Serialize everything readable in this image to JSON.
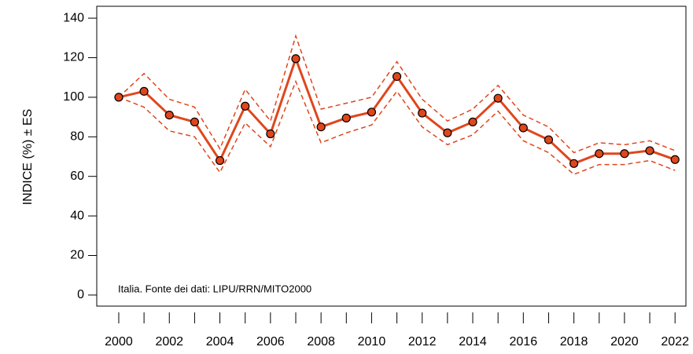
{
  "chart_data": {
    "type": "line",
    "ylabel": "INDICE (%) ± ES",
    "annotation": "Italia. Fonte dei dati: LIPU/RRN/MITO2000",
    "x": [
      2000,
      2001,
      2002,
      2003,
      2004,
      2005,
      2006,
      2007,
      2008,
      2009,
      2010,
      2011,
      2012,
      2013,
      2014,
      2015,
      2016,
      2017,
      2018,
      2019,
      2020,
      2021,
      2022
    ],
    "series": [
      {
        "color": "#e0461c",
        "line_style": "solid",
        "markers": true,
        "values": [
          100,
          103,
          91,
          87.5,
          68,
          95.5,
          81.5,
          119.5,
          85,
          89.5,
          92.5,
          110.5,
          92,
          82,
          87.5,
          99.5,
          84.5,
          78.5,
          66.5,
          71.5,
          71.5,
          73,
          68.5
        ]
      },
      {
        "color": "#e0461c",
        "line_style": "dashed",
        "markers": false,
        "values": [
          100,
          112,
          99,
          95,
          74,
          104,
          88,
          131,
          94,
          97,
          100,
          118,
          99,
          88,
          94,
          106,
          91,
          85,
          72,
          77,
          76,
          78,
          73
        ]
      },
      {
        "color": "#e0461c",
        "line_style": "dashed",
        "markers": false,
        "values": [
          100,
          95,
          83,
          80,
          62,
          87,
          75,
          108,
          77,
          82,
          86,
          103,
          85,
          76,
          81,
          93,
          78,
          72,
          61,
          66,
          66,
          68,
          63
        ]
      }
    ],
    "xlim": [
      1999.13,
      2022.43
    ],
    "xticks": [
      2000,
      2002,
      2004,
      2006,
      2008,
      2010,
      2012,
      2014,
      2016,
      2018,
      2020,
      2022
    ],
    "xminorticks": [
      2001,
      2003,
      2005,
      2007,
      2009,
      2011,
      2013,
      2015,
      2017,
      2019,
      2021
    ],
    "ylim": [
      -5.6,
      146
    ],
    "yticks": [
      0,
      20,
      40,
      60,
      80,
      100,
      120,
      140
    ]
  }
}
